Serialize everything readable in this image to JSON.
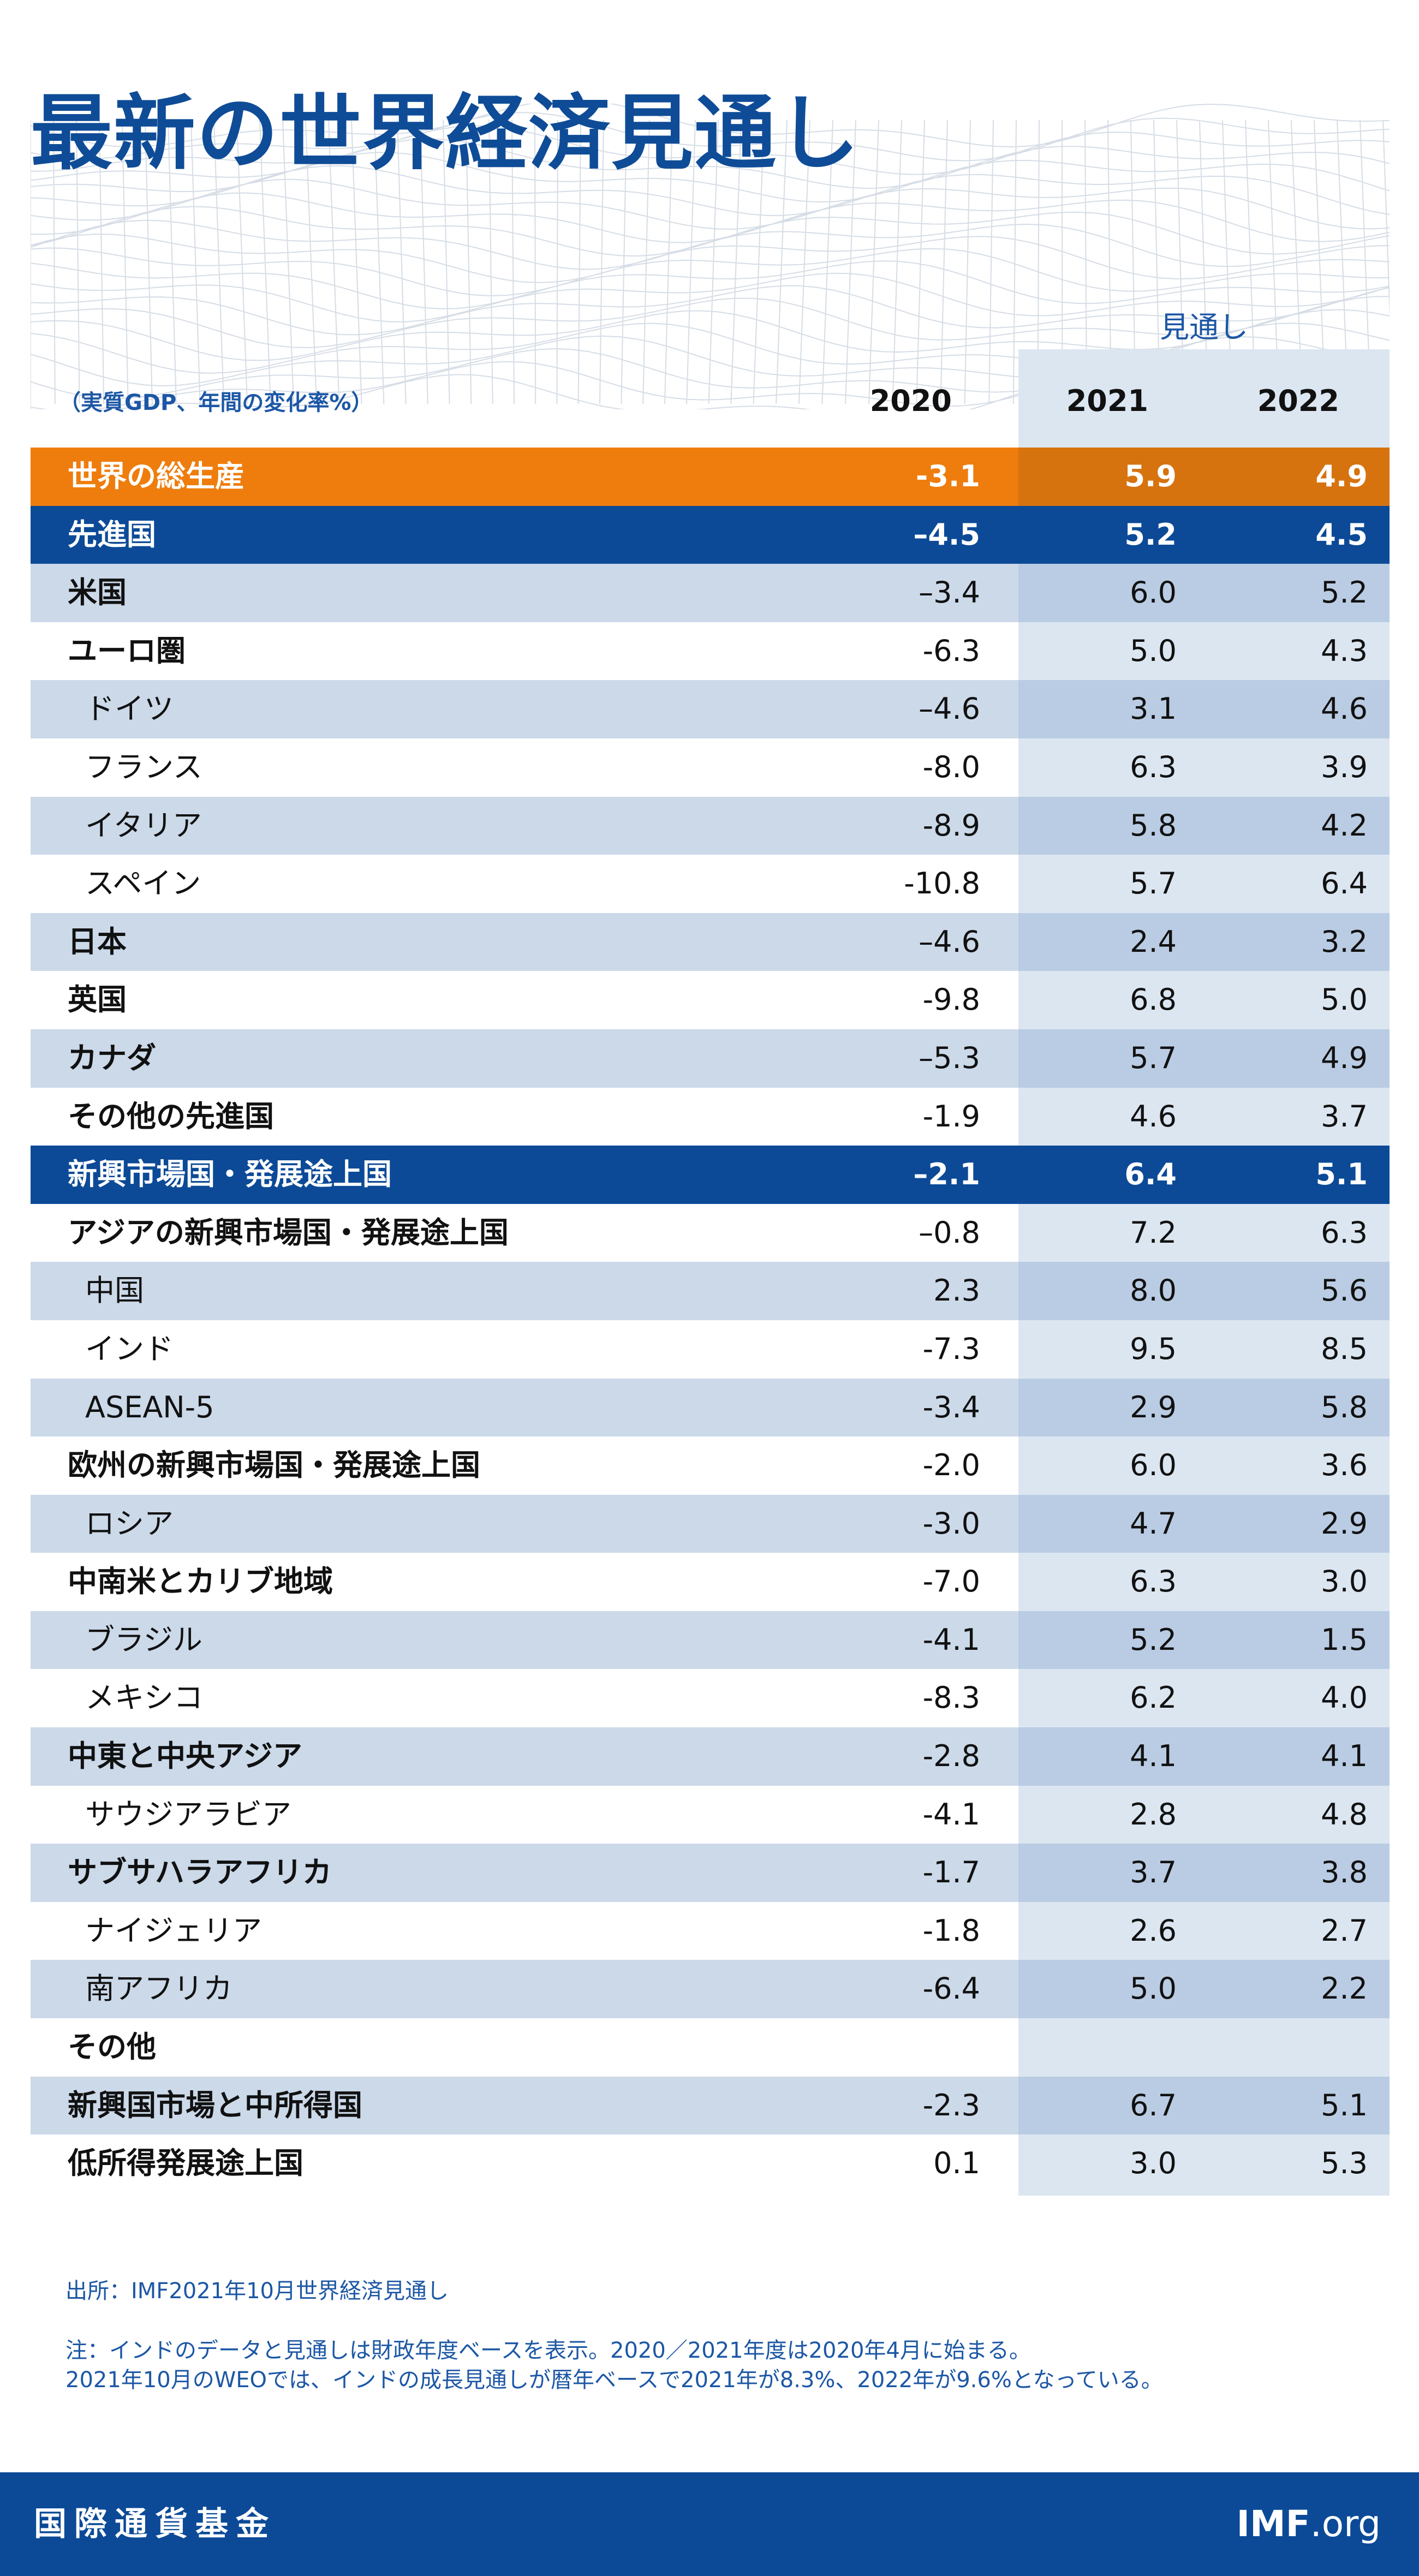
{
  "title": "最新の世界経済見通し",
  "units": "（実質GDP、年間の変化率%）",
  "forecast_label": "見通し",
  "years": [
    "2020",
    "2021",
    "2022"
  ],
  "colors": {
    "brand_blue": "#0c4a97",
    "highlight_orange": "#ee7d0d",
    "stripe": "#cbd9e9",
    "forecast_shade": "#dce6f1"
  },
  "rows": [
    {
      "label": "世界の総生産",
      "style": "total",
      "values": [
        "-3.1",
        "5.9",
        "4.9"
      ]
    },
    {
      "label": "先進国",
      "style": "group",
      "values": [
        "–4.5",
        "5.2",
        "4.5"
      ]
    },
    {
      "label": "米国",
      "style": "bold",
      "values": [
        "–3.4",
        "6.0",
        "5.2"
      ]
    },
    {
      "label": "ユーロ圏",
      "style": "bold",
      "values": [
        "-6.3",
        "5.0",
        "4.3"
      ]
    },
    {
      "label": "ドイツ",
      "style": "indent",
      "values": [
        "–4.6",
        "3.1",
        "4.6"
      ]
    },
    {
      "label": "フランス",
      "style": "indent",
      "values": [
        "-8.0",
        "6.3",
        "3.9"
      ]
    },
    {
      "label": "イタリア",
      "style": "indent",
      "values": [
        "-8.9",
        "5.8",
        "4.2"
      ]
    },
    {
      "label": "スペイン",
      "style": "indent",
      "values": [
        "-10.8",
        "5.7",
        "6.4"
      ]
    },
    {
      "label": "日本",
      "style": "bold",
      "values": [
        "–4.6",
        "2.4",
        "3.2"
      ]
    },
    {
      "label": "英国",
      "style": "bold",
      "values": [
        "-9.8",
        "6.8",
        "5.0"
      ]
    },
    {
      "label": "カナダ",
      "style": "bold",
      "values": [
        "–5.3",
        "5.7",
        "4.9"
      ]
    },
    {
      "label": "その他の先進国",
      "style": "bold",
      "values": [
        "-1.9",
        "4.6",
        "3.7"
      ]
    },
    {
      "label": "新興市場国・発展途上国",
      "style": "group",
      "values": [
        "–2.1",
        "6.4",
        "5.1"
      ]
    },
    {
      "label": "アジアの新興市場国・発展途上国",
      "style": "bold",
      "values": [
        "–0.8",
        "7.2",
        "6.3"
      ]
    },
    {
      "label": "中国",
      "style": "indent",
      "values": [
        "2.3",
        "8.0",
        "5.6"
      ]
    },
    {
      "label": "インド",
      "style": "indent",
      "values": [
        "-7.3",
        "9.5",
        "8.5"
      ]
    },
    {
      "label": "ASEAN-5",
      "style": "indent",
      "values": [
        "-3.4",
        "2.9",
        "5.8"
      ]
    },
    {
      "label": "欧州の新興市場国・発展途上国",
      "style": "bold",
      "values": [
        "-2.0",
        "6.0",
        "3.6"
      ]
    },
    {
      "label": "ロシア",
      "style": "indent",
      "values": [
        "-3.0",
        "4.7",
        "2.9"
      ]
    },
    {
      "label": "中南米とカリブ地域",
      "style": "bold",
      "values": [
        "-7.0",
        "6.3",
        "3.0"
      ]
    },
    {
      "label": "ブラジル",
      "style": "indent",
      "values": [
        "-4.1",
        "5.2",
        "1.5"
      ]
    },
    {
      "label": "メキシコ",
      "style": "indent",
      "values": [
        "-8.3",
        "6.2",
        "4.0"
      ]
    },
    {
      "label": "中東と中央アジア",
      "style": "bold",
      "values": [
        "-2.8",
        "4.1",
        "4.1"
      ]
    },
    {
      "label": "サウジアラビア",
      "style": "indent",
      "values": [
        "-4.1",
        "2.8",
        "4.8"
      ]
    },
    {
      "label": "サブサハラアフリカ",
      "style": "bold",
      "values": [
        "-1.7",
        "3.7",
        "3.8"
      ]
    },
    {
      "label": "ナイジェリア",
      "style": "indent",
      "values": [
        "-1.8",
        "2.6",
        "2.7"
      ]
    },
    {
      "label": "南アフリカ",
      "style": "indent",
      "values": [
        "-6.4",
        "5.0",
        "2.2"
      ]
    },
    {
      "label": "その他",
      "style": "bold",
      "values": [
        "",
        "",
        ""
      ]
    },
    {
      "label": "新興国市場と中所得国",
      "style": "bold",
      "values": [
        "-2.3",
        "6.7",
        "5.1"
      ]
    },
    {
      "label": "低所得発展途上国",
      "style": "bold",
      "values": [
        "0.1",
        "3.0",
        "5.3"
      ]
    }
  ],
  "chart_data": {
    "type": "table",
    "title": "最新の世界経済見通し",
    "subtitle": "（実質GDP、年間の変化率%）",
    "columns": [
      "2020",
      "2021",
      "2022"
    ],
    "column_group_label": {
      "columns": [
        "2021",
        "2022"
      ],
      "label": "見通し"
    },
    "row_labels": [
      "世界の総生産",
      "先進国",
      "米国",
      "ユーロ圏",
      "ドイツ",
      "フランス",
      "イタリア",
      "スペイン",
      "日本",
      "英国",
      "カナダ",
      "その他の先進国",
      "新興市場国・発展途上国",
      "アジアの新興市場国・発展途上国",
      "中国",
      "インド",
      "ASEAN-5",
      "欧州の新興市場国・発展途上国",
      "ロシア",
      "中南米とカリブ地域",
      "ブラジル",
      "メキシコ",
      "中東と中央アジア",
      "サウジアラビア",
      "サブサハラアフリカ",
      "ナイジェリア",
      "南アフリカ",
      "その他",
      "新興国市場と中所得国",
      "低所得発展途上国"
    ],
    "values": [
      [
        -3.1,
        5.9,
        4.9
      ],
      [
        -4.5,
        5.2,
        4.5
      ],
      [
        -3.4,
        6.0,
        5.2
      ],
      [
        -6.3,
        5.0,
        4.3
      ],
      [
        -4.6,
        3.1,
        4.6
      ],
      [
        -8.0,
        6.3,
        3.9
      ],
      [
        -8.9,
        5.8,
        4.2
      ],
      [
        -10.8,
        5.7,
        6.4
      ],
      [
        -4.6,
        2.4,
        3.2
      ],
      [
        -9.8,
        6.8,
        5.0
      ],
      [
        -5.3,
        5.7,
        4.9
      ],
      [
        -1.9,
        4.6,
        3.7
      ],
      [
        -2.1,
        6.4,
        5.1
      ],
      [
        -0.8,
        7.2,
        6.3
      ],
      [
        2.3,
        8.0,
        5.6
      ],
      [
        -7.3,
        9.5,
        8.5
      ],
      [
        -3.4,
        2.9,
        5.8
      ],
      [
        -2.0,
        6.0,
        3.6
      ],
      [
        -3.0,
        4.7,
        2.9
      ],
      [
        -7.0,
        6.3,
        3.0
      ],
      [
        -4.1,
        5.2,
        1.5
      ],
      [
        -8.3,
        6.2,
        4.0
      ],
      [
        -2.8,
        4.1,
        4.1
      ],
      [
        -4.1,
        2.8,
        4.8
      ],
      [
        -1.7,
        3.7,
        3.8
      ],
      [
        -1.8,
        2.6,
        2.7
      ],
      [
        -6.4,
        5.0,
        2.2
      ],
      [
        null,
        null,
        null
      ],
      [
        -2.3,
        6.7,
        5.1
      ],
      [
        0.1,
        3.0,
        5.3
      ]
    ]
  },
  "source": "出所：IMF2021年10月世界経済見通し",
  "note_lines": [
    "注：インドのデータと見通しは財政年度ベースを表示。2020／2021年度は2020年4月に始まる。",
    "2021年10月のWEOでは、インドの成長見通しが暦年ベースで2021年が8.3%、2022年が9.6%となっている。"
  ],
  "footer": {
    "org_name": "国際通貨基金",
    "site_bold": "IMF",
    "site_rest": ".org"
  }
}
